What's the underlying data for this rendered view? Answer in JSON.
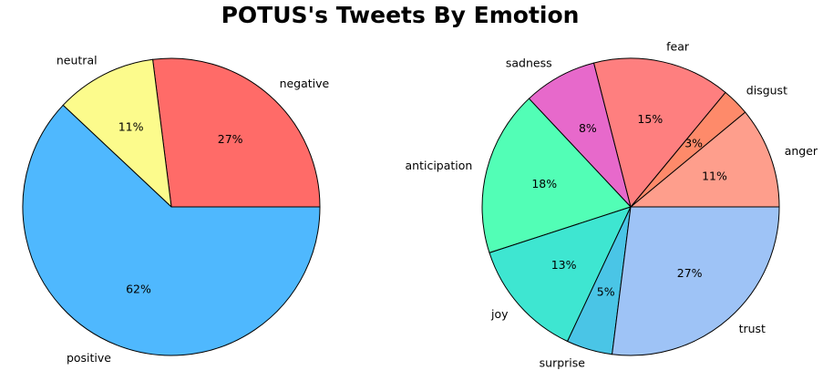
{
  "title": "POTUS's Tweets By Emotion",
  "chart_data": [
    {
      "type": "pie",
      "title": "",
      "categories": [
        "negative",
        "neutral",
        "positive"
      ],
      "values": [
        27,
        11,
        62
      ],
      "labels": [
        "27%",
        "11%",
        "62%"
      ],
      "colors": [
        "#ff6b68",
        "#fcfb8c",
        "#4fb8fe"
      ],
      "start_angle": 0,
      "direction": "counterclockwise"
    },
    {
      "type": "pie",
      "title": "",
      "categories": [
        "anger",
        "disgust",
        "fear",
        "sadness",
        "anticipation",
        "joy",
        "surprise",
        "trust"
      ],
      "values": [
        11,
        3,
        15,
        8,
        18,
        13,
        5,
        27
      ],
      "labels": [
        "11%",
        "3%",
        "15%",
        "8%",
        "18%",
        "13%",
        "5%",
        "27%"
      ],
      "colors": [
        "#fe9e8c",
        "#fe8a6a",
        "#fe7f7f",
        "#e769cb",
        "#52feb6",
        "#3ee6d1",
        "#4ac5e6",
        "#9ec3f6"
      ],
      "start_angle": 0,
      "direction": "counterclockwise"
    }
  ]
}
